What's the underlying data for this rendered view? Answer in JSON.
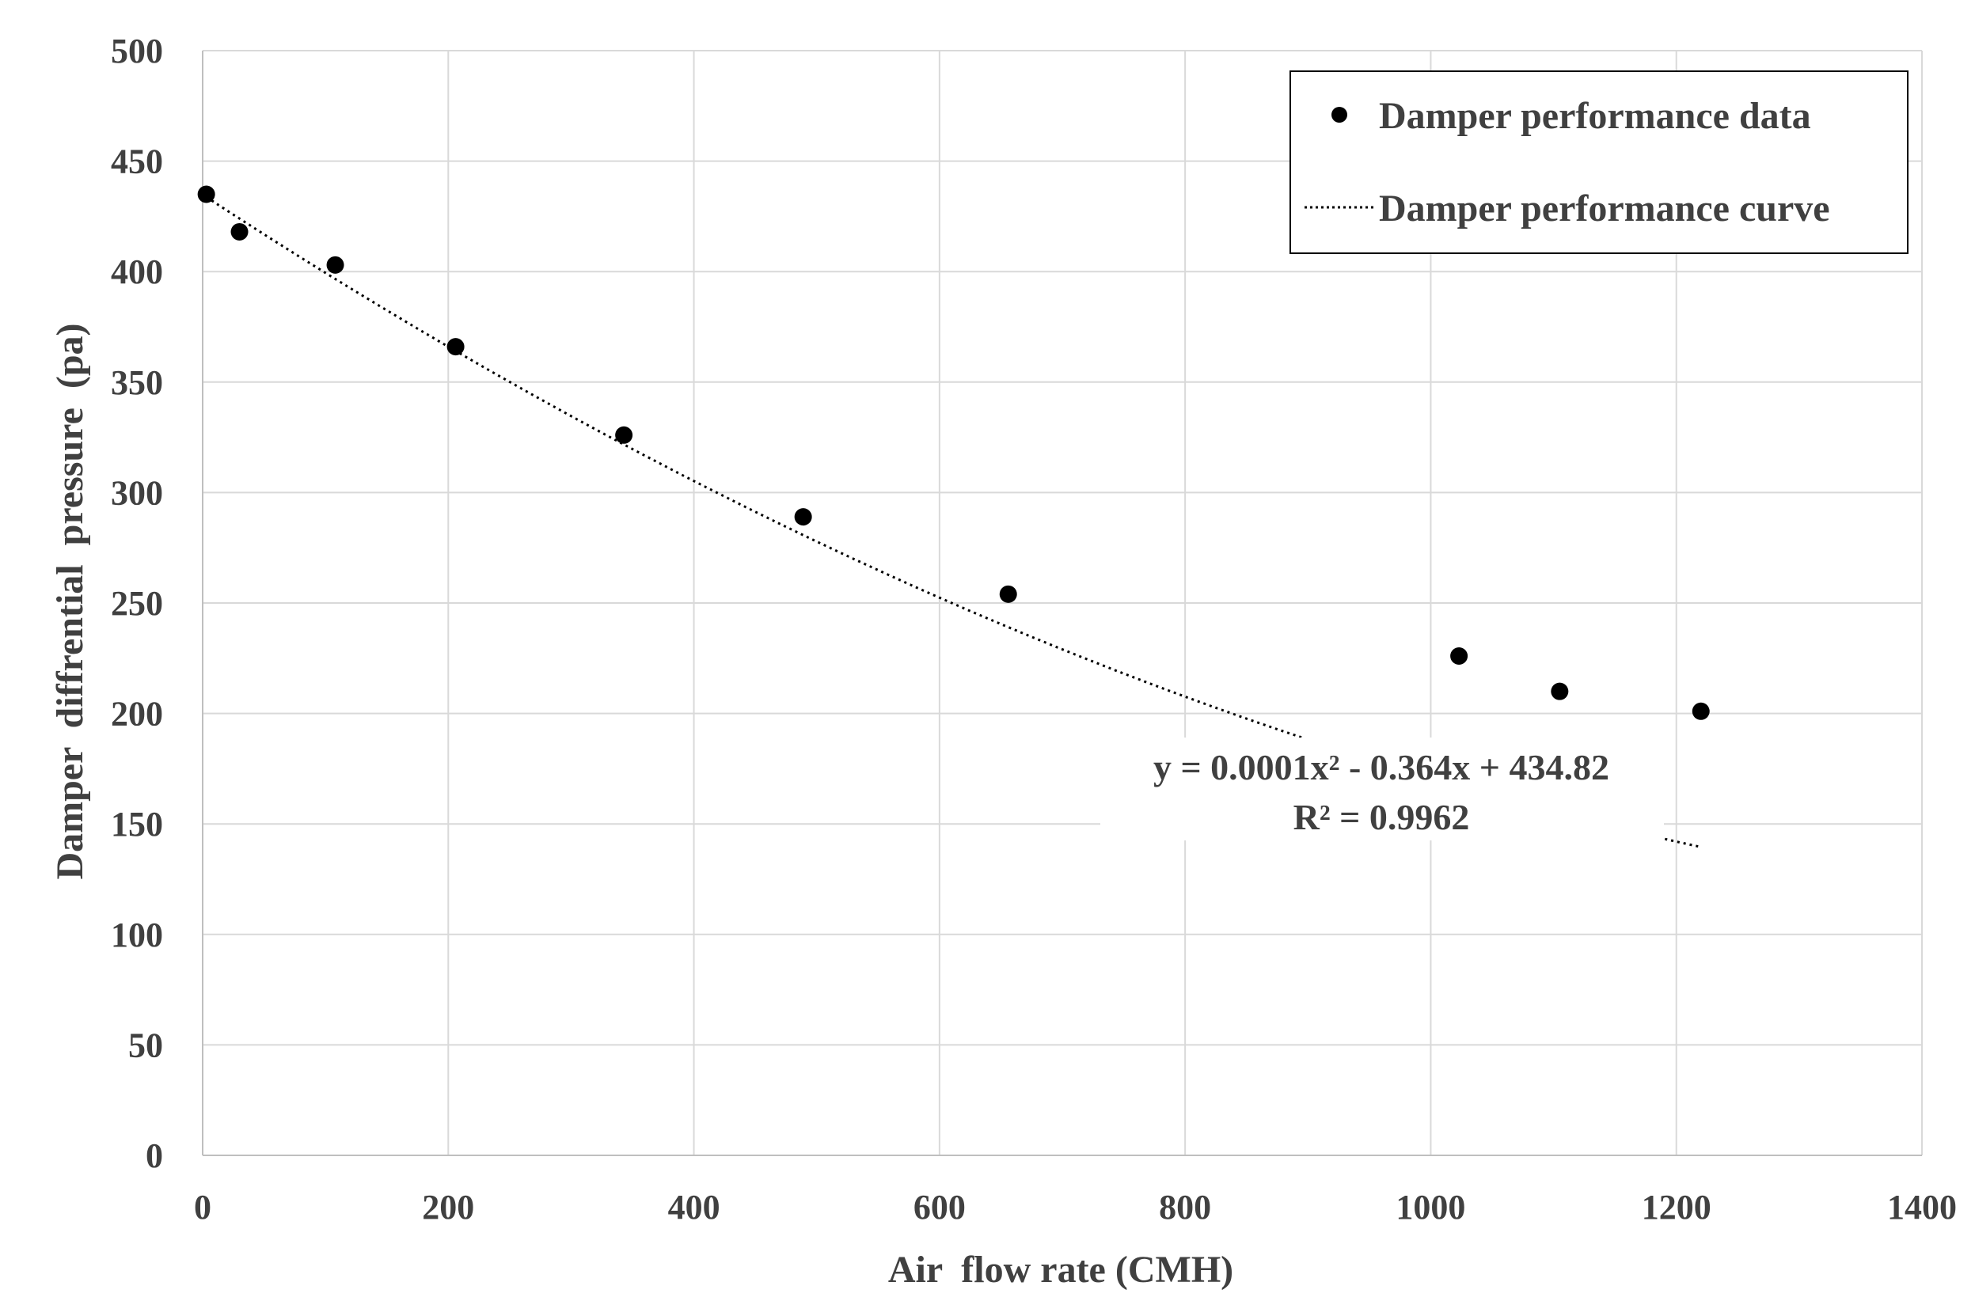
{
  "chart_data": {
    "type": "scatter",
    "title": "",
    "xlabel": "Air  flow rate (CMH)",
    "ylabel": "Damper  diffrential  pressure  (pa)",
    "xlim": [
      0,
      1400
    ],
    "ylim": [
      0,
      500
    ],
    "x_ticks": [
      0,
      200,
      400,
      600,
      800,
      1000,
      1200,
      1400
    ],
    "y_ticks": [
      0,
      50,
      100,
      150,
      200,
      250,
      300,
      350,
      400,
      450,
      500
    ],
    "x_tick_labels": [
      "0",
      "200",
      "400",
      "600",
      "800",
      "1000",
      "1200",
      "1400"
    ],
    "y_tick_labels": [
      "0",
      "50",
      "100",
      "150",
      "200",
      "250",
      "300",
      "350",
      "400",
      "450",
      "500"
    ],
    "grid": true,
    "legend_position": "top-right",
    "series": [
      {
        "name": "Damper performance data",
        "kind": "scatter",
        "color": "#000000",
        "points": [
          {
            "x": 3,
            "y": 435
          },
          {
            "x": 30,
            "y": 418
          },
          {
            "x": 108,
            "y": 403
          },
          {
            "x": 206,
            "y": 366
          },
          {
            "x": 343,
            "y": 326
          },
          {
            "x": 489,
            "y": 289
          },
          {
            "x": 656,
            "y": 254
          },
          {
            "x": 1023,
            "y": 226
          },
          {
            "x": 1105,
            "y": 210
          },
          {
            "x": 1220,
            "y": 201
          }
        ]
      },
      {
        "name": "Damper performance curve",
        "kind": "trendline",
        "style": "dotted",
        "color": "#000000",
        "fit": {
          "type": "polynomial",
          "order": 2,
          "a": 0.0001,
          "b": -0.364,
          "c": 434.82
        },
        "x_range": [
          3,
          1220
        ]
      }
    ],
    "annotation": {
      "equation": "y = 0.0001x² - 0.364x + 434.82",
      "r_squared": "R² = 0.9962"
    }
  }
}
